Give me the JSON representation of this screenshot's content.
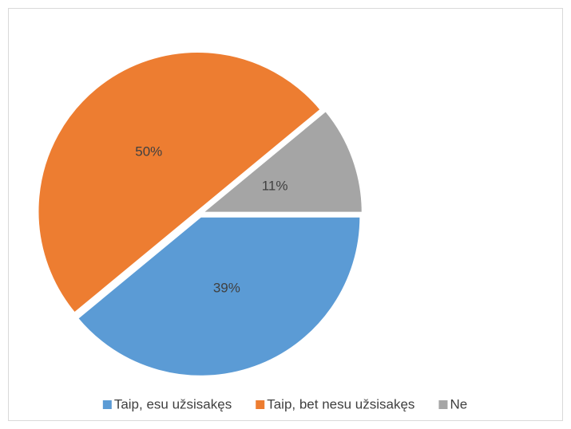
{
  "chart_data": {
    "type": "pie",
    "categories": [
      "Taip, esu užsisakęs",
      "Taip, bet nesu užsisakęs",
      "Ne"
    ],
    "values": [
      39,
      50,
      11
    ],
    "value_labels": [
      "39%",
      "50%",
      "11%"
    ],
    "colors": [
      "#5b9bd5",
      "#ed7d31",
      "#a5a5a5"
    ],
    "legend": "bottom"
  }
}
